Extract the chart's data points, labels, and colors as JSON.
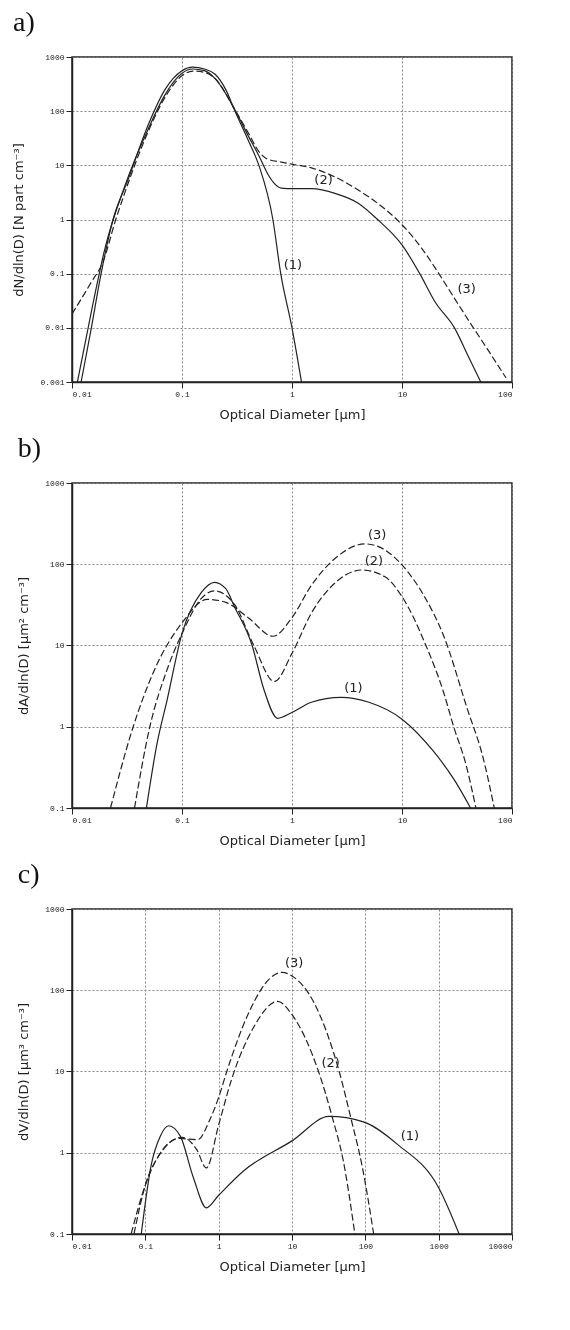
{
  "chart_data": [
    {
      "type": "line",
      "title": "a)",
      "xlabel": "Optical Diameter  [µm]",
      "ylabel": "dN/dln(D)  [N  part cm⁻³]",
      "log": "xy",
      "grid": true,
      "xlim": [
        0.01,
        100
      ],
      "ylim": [
        0.001,
        1000
      ],
      "xticks": [
        0.01,
        0.1,
        1,
        10,
        100
      ],
      "yticks": [
        0.001,
        0.01,
        0.1,
        1,
        10,
        100,
        1000
      ],
      "series": [
        {
          "color": "#222222",
          "line_style": "solid",
          "x": [
            0.0121,
            0.015,
            0.018,
            0.0236,
            0.0318,
            0.05,
            0.07,
            0.1,
            0.125,
            0.16,
            0.2,
            0.25,
            0.3,
            0.4,
            0.5,
            0.67,
            0.79,
            1.0,
            1.22
          ],
          "values": [
            0.001,
            0.01,
            0.08,
            1,
            5,
            60,
            250,
            560,
            650,
            600,
            480,
            250,
            105,
            29,
            10,
            1,
            0.1,
            0.01,
            0.001
          ]
        },
        {
          "color": "#222222",
          "line_style": "solid",
          "x": [
            0.0112,
            0.015,
            0.02,
            0.03,
            0.05,
            0.07,
            0.1,
            0.125,
            0.16,
            0.2,
            0.3,
            0.4,
            0.5,
            0.6,
            0.7,
            0.8,
            1,
            1.5,
            2.5,
            4,
            6,
            10,
            14.5,
            20,
            30,
            40,
            52
          ],
          "values": [
            0.001,
            0.02,
            0.3,
            4,
            50,
            200,
            500,
            600,
            560,
            400,
            110,
            35,
            15,
            7,
            4.5,
            3.8,
            3.7,
            3.7,
            3,
            2,
            1,
            0.34,
            0.1,
            0.03,
            0.01,
            0.003,
            0.001
          ]
        },
        {
          "color": "#222222",
          "line_style": "dashed",
          "x": [
            0.01,
            0.015,
            0.019,
            0.025,
            0.03,
            0.05,
            0.07,
            0.1,
            0.125,
            0.16,
            0.2,
            0.3,
            0.4,
            0.5,
            0.6,
            0.8,
            1,
            1.5,
            2.5,
            4,
            6,
            10,
            15,
            21,
            30,
            45,
            60,
            88
          ],
          "values": [
            0.018,
            0.07,
            0.16,
            1,
            3,
            45,
            180,
            450,
            550,
            520,
            400,
            110,
            40,
            18,
            13,
            11.5,
            10.5,
            9,
            6,
            3.5,
            2,
            0.8,
            0.3,
            0.11,
            0.035,
            0.0097,
            0.004,
            0.0012
          ]
        }
      ],
      "annotations": [
        {
          "text": "(1)",
          "x": 0.79,
          "y": 0.1
        },
        {
          "text": "(2)",
          "x": 1.5,
          "y": 3.7
        },
        {
          "text": "(3)",
          "x": 30,
          "y": 0.035
        }
      ]
    },
    {
      "type": "line",
      "title": "b)",
      "xlabel": "Optical Diameter  [µm]",
      "ylabel": "dA/dln(D)  [µm² cm⁻³]",
      "log": "xy",
      "grid": true,
      "xlim": [
        0.01,
        100
      ],
      "ylim": [
        0.1,
        1000
      ],
      "xticks": [
        0.01,
        0.1,
        1,
        10,
        100
      ],
      "yticks": [
        0.1,
        1,
        10,
        100,
        1000
      ],
      "series": [
        {
          "color": "#222222",
          "line_style": "solid",
          "x": [
            0.0475,
            0.059,
            0.073,
            0.1,
            0.15,
            0.198,
            0.25,
            0.3,
            0.434,
            0.55,
            0.74,
            1,
            1.5,
            2.8,
            5,
            10,
            19.3,
            30,
            42
          ],
          "values": [
            0.1,
            0.6,
            2.1,
            14,
            45,
            60,
            50,
            30,
            10,
            3,
            1.27,
            1.5,
            2,
            2.3,
            2,
            1.24,
            0.5,
            0.22,
            0.1
          ]
        },
        {
          "color": "#222222",
          "line_style": "dashed",
          "x": [
            0.037,
            0.051,
            0.073,
            0.1,
            0.15,
            0.198,
            0.3,
            0.45,
            0.69,
            1,
            1.5,
            2.5,
            4.3,
            7,
            10,
            16.5,
            24,
            29.5,
            38,
            47
          ],
          "values": [
            0.1,
            1,
            5,
            14,
            38,
            47,
            32,
            10,
            3.6,
            8,
            25,
            60,
            85,
            70,
            40,
            10,
            2.6,
            1,
            0.35,
            0.1
          ]
        },
        {
          "color": "#222222",
          "line_style": "dashed",
          "x": [
            0.0224,
            0.036,
            0.055,
            0.1,
            0.17,
            0.25,
            0.4,
            0.67,
            1,
            1.5,
            2.5,
            4.6,
            7,
            10,
            16,
            24,
            39,
            55,
            69
          ],
          "values": [
            0.1,
            1,
            4.7,
            19,
            37,
            34,
            22,
            13,
            22,
            55,
            120,
            178,
            150,
            98,
            40,
            13,
            1.7,
            0.4,
            0.1
          ]
        }
      ],
      "annotations": [
        {
          "text": "(1)",
          "x": 2.8,
          "y": 2.3
        },
        {
          "text": "(2)",
          "x": 4.3,
          "y": 85
        },
        {
          "text": "(3)",
          "x": 4.6,
          "y": 178
        }
      ]
    },
    {
      "type": "line",
      "title": "c)",
      "xlabel": "Optical Diameter  [µm]",
      "ylabel": "dV/dln(D)  [µm³ cm⁻³]",
      "log": "xy",
      "grid": true,
      "xlim": [
        0.01,
        10000
      ],
      "ylim": [
        0.1,
        1000
      ],
      "xticks": [
        0.01,
        0.1,
        1,
        10,
        100,
        1000,
        10000
      ],
      "yticks": [
        0.1,
        1,
        10,
        100,
        1000
      ],
      "series": [
        {
          "color": "#222222",
          "line_style": "solid",
          "x": [
            0.088,
            0.12,
            0.16,
            0.208,
            0.3,
            0.45,
            0.68,
            1,
            2.2,
            10,
            32,
            94,
            277,
            1000,
            1900
          ],
          "values": [
            0.1,
            0.7,
            1.6,
            2.15,
            1.6,
            0.5,
            0.21,
            0.3,
            0.6,
            1.4,
            2.8,
            2.4,
            1.26,
            0.37,
            0.1
          ]
        },
        {
          "color": "#222222",
          "line_style": "dashed",
          "x": [
            0.064,
            0.1,
            0.15,
            0.32,
            0.5,
            0.68,
            1,
            1.5,
            3,
            6.4,
            10,
            23,
            36,
            50,
            72
          ],
          "values": [
            0.1,
            0.4,
            0.9,
            1.55,
            1.1,
            0.65,
            2.2,
            8,
            35,
            73,
            50,
            10,
            2.6,
            0.8,
            0.1
          ]
        },
        {
          "color": "#222222",
          "line_style": "dashed",
          "x": [
            0.07,
            0.1,
            0.15,
            0.29,
            0.52,
            0.75,
            1,
            1.29,
            2.5,
            5,
            7.3,
            10,
            20,
            44,
            64,
            90,
            130
          ],
          "values": [
            0.1,
            0.4,
            0.9,
            1.5,
            1.45,
            2.5,
            4.8,
            10,
            50,
            140,
            166,
            150,
            70,
            10,
            2.6,
            0.7,
            0.1
          ]
        }
      ],
      "annotations": [
        {
          "text": "(1)",
          "x": 277,
          "y": 1.26
        },
        {
          "text": "(2)",
          "x": 23,
          "y": 10
        },
        {
          "text": "(3)",
          "x": 7.3,
          "y": 166
        }
      ]
    }
  ]
}
